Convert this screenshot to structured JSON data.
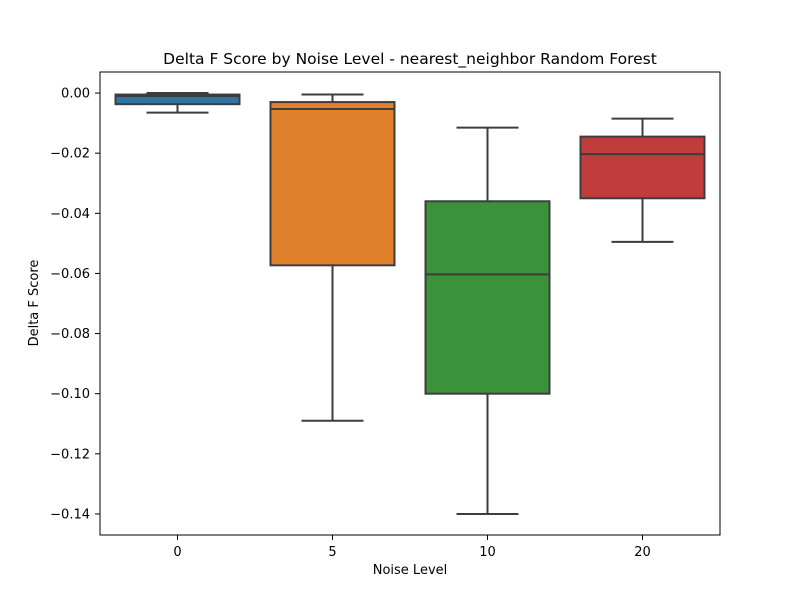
{
  "chart_data": {
    "type": "box",
    "title": "Delta F Score by Noise Level - nearest_neighbor Random Forest",
    "xlabel": "Noise Level",
    "ylabel": "Delta F Score",
    "ylim": [
      -0.147,
      0.007
    ],
    "yticks": [
      0.0,
      -0.02,
      -0.04,
      -0.06,
      -0.08,
      -0.1,
      -0.12,
      -0.14
    ],
    "ytick_labels": [
      "0.00",
      "−0.02",
      "−0.04",
      "−0.06",
      "−0.08",
      "−0.10",
      "−0.12",
      "−0.14"
    ],
    "categories": [
      "0",
      "5",
      "10",
      "20"
    ],
    "boxes": [
      {
        "category": "0",
        "whisker_low": -0.0065,
        "q1": -0.0037,
        "median": -0.001,
        "q3": -0.0005,
        "whisker_high": 0.0,
        "color": "#3274a1"
      },
      {
        "category": "5",
        "whisker_low": -0.109,
        "q1": -0.0573,
        "median": -0.0053,
        "q3": -0.003,
        "whisker_high": -0.0005,
        "color": "#e1812c"
      },
      {
        "category": "10",
        "whisker_low": -0.14,
        "q1": -0.1,
        "median": -0.0603,
        "q3": -0.036,
        "whisker_high": -0.0115,
        "color": "#3a923a"
      },
      {
        "category": "20",
        "whisker_low": -0.0495,
        "q1": -0.035,
        "median": -0.0203,
        "q3": -0.0145,
        "whisker_high": -0.0085,
        "color": "#c03d3e"
      }
    ],
    "grid": false,
    "legend": "none"
  }
}
